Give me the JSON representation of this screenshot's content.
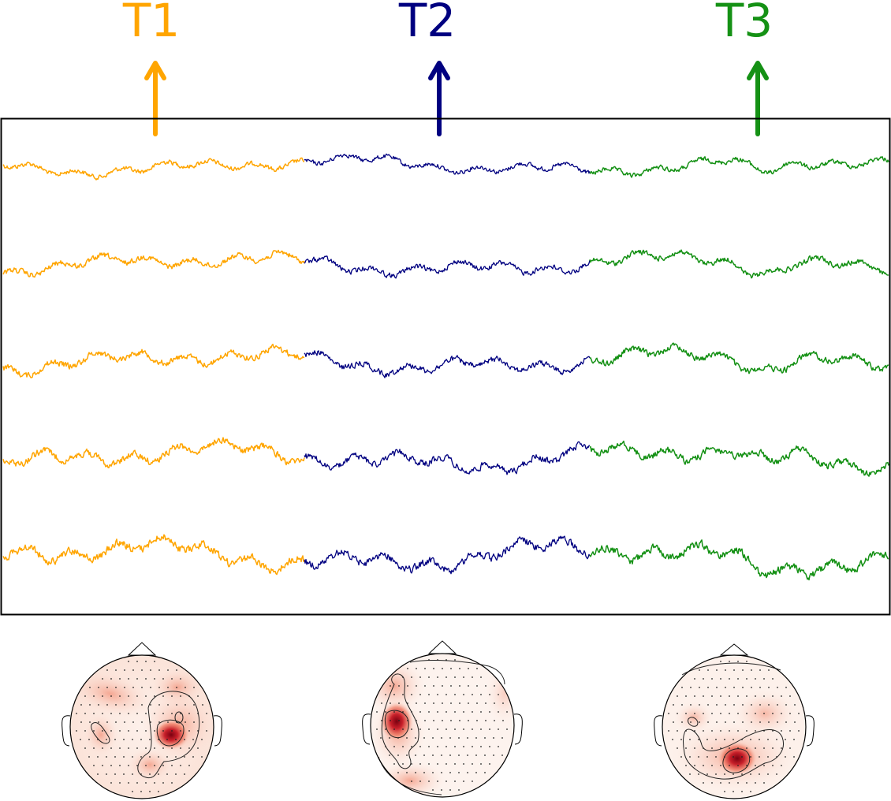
{
  "markers": [
    {
      "label": "T1",
      "color": "#ffa500"
    },
    {
      "label": "T2",
      "color": "#000080"
    },
    {
      "label": "T3",
      "color": "#159115"
    }
  ],
  "traces": {
    "channel_count": 5,
    "segment_colors": [
      "#ffa500",
      "#000080",
      "#159115"
    ]
  },
  "topomaps": [
    {
      "name": "topomap-t1",
      "hotspot": "right-central"
    },
    {
      "name": "topomap-t2",
      "hotspot": "left-temporal"
    },
    {
      "name": "topomap-t3",
      "hotspot": "posterior"
    }
  ],
  "colormap": {
    "low": "#ffffff",
    "mid": "#ef5a3c",
    "high": "#7a0010"
  }
}
